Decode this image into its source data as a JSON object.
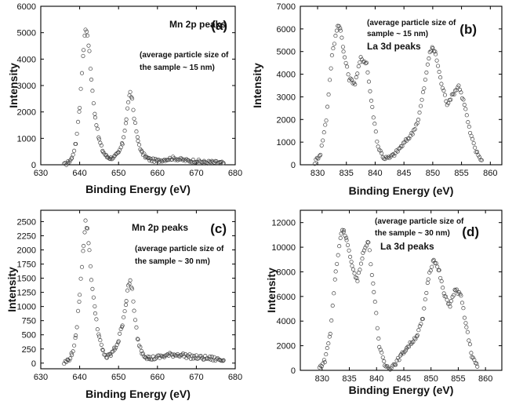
{
  "chart_data": [
    {
      "type": "scatter",
      "panel_label": "(a)",
      "xlabel": "Binding Energy (eV)",
      "ylabel": "Intensity",
      "xlim": [
        630,
        680
      ],
      "ylim": [
        0,
        6000
      ],
      "x_ticks": [
        630,
        640,
        650,
        660,
        670,
        680
      ],
      "y_ticks": [
        0,
        1000,
        2000,
        3000,
        4000,
        5000,
        6000
      ],
      "annotations": [
        {
          "text": "Mn 2p peaks",
          "style": "annot-big"
        },
        {
          "text": "(average particle size of",
          "style": "annot"
        },
        {
          "text": "the sample ~ 15 nm)",
          "style": "annot"
        }
      ],
      "series": [
        {
          "noise": 60,
          "x": [
            636,
            637,
            638,
            639,
            640,
            641,
            641.5,
            642,
            642.5,
            643,
            644,
            645,
            646,
            647,
            648,
            649,
            650,
            651,
            652,
            652.5,
            653,
            653.5,
            654,
            655,
            656,
            657,
            658,
            660,
            662,
            664,
            666,
            668,
            670,
            672,
            674,
            676,
            677
          ],
          "y": [
            0,
            80,
            250,
            800,
            2200,
            4400,
            5150,
            4900,
            4300,
            3200,
            1800,
            950,
            500,
            300,
            250,
            300,
            450,
            800,
            1700,
            2400,
            2700,
            2500,
            1800,
            900,
            450,
            300,
            200,
            150,
            200,
            250,
            200,
            150,
            150,
            100,
            100,
            80,
            60
          ]
        }
      ]
    },
    {
      "type": "scatter",
      "panel_label": "(b)",
      "xlabel": "Binding Energy (eV)",
      "ylabel": "Intensity",
      "xlim": [
        827,
        862
      ],
      "ylim": [
        0,
        7000
      ],
      "x_ticks": [
        830,
        835,
        840,
        845,
        850,
        855,
        860
      ],
      "y_ticks": [
        0,
        1000,
        2000,
        3000,
        4000,
        5000,
        6000,
        7000
      ],
      "annotations": [
        {
          "text": "(average particle size of",
          "style": "annot"
        },
        {
          "text": "sample ~ 15 nm)",
          "style": "annot"
        },
        {
          "text": "La 3d peaks",
          "style": "annot-big"
        }
      ],
      "series": [
        {
          "noise": 80,
          "x": [
            829.5,
            830.5,
            831.5,
            832.5,
            833.5,
            834,
            834.5,
            835.5,
            836.5,
            837.5,
            838.5,
            839.5,
            840.5,
            841.5,
            842.5,
            843.5,
            844.5,
            845.5,
            846.5,
            847.5,
            848.5,
            849.5,
            850,
            850.5,
            851.5,
            852.5,
            853.5,
            854.5,
            855.5,
            856.5,
            857.5,
            858.5
          ],
          "y": [
            100,
            500,
            2000,
            4800,
            6200,
            6000,
            5000,
            3800,
            3600,
            4700,
            4500,
            2500,
            800,
            300,
            300,
            500,
            800,
            1100,
            1400,
            2000,
            3400,
            5000,
            5150,
            4900,
            3600,
            2700,
            3100,
            3500,
            2700,
            1400,
            600,
            200
          ]
        }
      ]
    },
    {
      "type": "scatter",
      "panel_label": "(c)",
      "xlabel": "Binding Energy (eV)",
      "ylabel": "Intensity",
      "xlim": [
        630,
        680
      ],
      "ylim": [
        -100,
        2700
      ],
      "x_ticks": [
        630,
        640,
        650,
        660,
        670,
        680
      ],
      "y_ticks": [
        0,
        250,
        500,
        750,
        1000,
        1250,
        1500,
        1750,
        2000,
        2250,
        2500
      ],
      "annotations": [
        {
          "text": "Mn 2p peaks",
          "style": "annot-big"
        },
        {
          "text": "(average particle size of",
          "style": "annot"
        },
        {
          "text": "the sample ~ 30 nm)",
          "style": "annot"
        }
      ],
      "series": [
        {
          "noise": 40,
          "x": [
            636,
            637,
            638,
            639,
            640,
            641,
            641.5,
            642,
            642.5,
            643,
            644,
            645,
            646,
            647,
            648,
            649,
            650,
            651,
            652,
            652.5,
            653,
            653.5,
            654,
            655,
            656,
            657,
            658,
            660,
            662,
            664,
            666,
            668,
            670,
            672,
            674,
            676,
            677
          ],
          "y": [
            0,
            50,
            150,
            450,
            1200,
            2100,
            2500,
            2350,
            2000,
            1500,
            900,
            450,
            200,
            100,
            150,
            250,
            400,
            700,
            1100,
            1350,
            1450,
            1300,
            900,
            400,
            200,
            120,
            80,
            100,
            130,
            150,
            150,
            120,
            100,
            90,
            80,
            60,
            50
          ]
        }
      ]
    },
    {
      "type": "scatter",
      "panel_label": "(d)",
      "xlabel": "Binding Energy (eV)",
      "ylabel": "Intensity",
      "xlim": [
        826,
        863
      ],
      "ylim": [
        0,
        13000
      ],
      "x_ticks": [
        830,
        835,
        840,
        845,
        850,
        855,
        860
      ],
      "y_ticks": [
        0,
        2000,
        4000,
        6000,
        8000,
        10000,
        12000
      ],
      "annotations": [
        {
          "text": "(average particle size of",
          "style": "annot"
        },
        {
          "text": "the sample ~ 30 nm)",
          "style": "annot"
        },
        {
          "text": "La 3d peaks",
          "style": "annot-big"
        }
      ],
      "series": [
        {
          "noise": 150,
          "x": [
            829.5,
            830.5,
            831.5,
            832.5,
            833.5,
            834,
            834.5,
            835.5,
            836.5,
            837.5,
            838.5,
            839.5,
            840.5,
            841.5,
            842.5,
            843.5,
            844.5,
            845.5,
            846.5,
            847.5,
            848.5,
            849.5,
            850.5,
            851.5,
            852.5,
            853.5,
            854.5,
            855.5,
            856.5,
            857.5,
            858.5
          ],
          "y": [
            200,
            800,
            3000,
            8000,
            11200,
            11400,
            10600,
            8400,
            7300,
            9500,
            10500,
            6500,
            2000,
            400,
            200,
            600,
            1200,
            1800,
            2300,
            2900,
            4200,
            7500,
            9100,
            8000,
            6000,
            5300,
            6600,
            6000,
            3500,
            1200,
            300
          ]
        }
      ]
    }
  ]
}
